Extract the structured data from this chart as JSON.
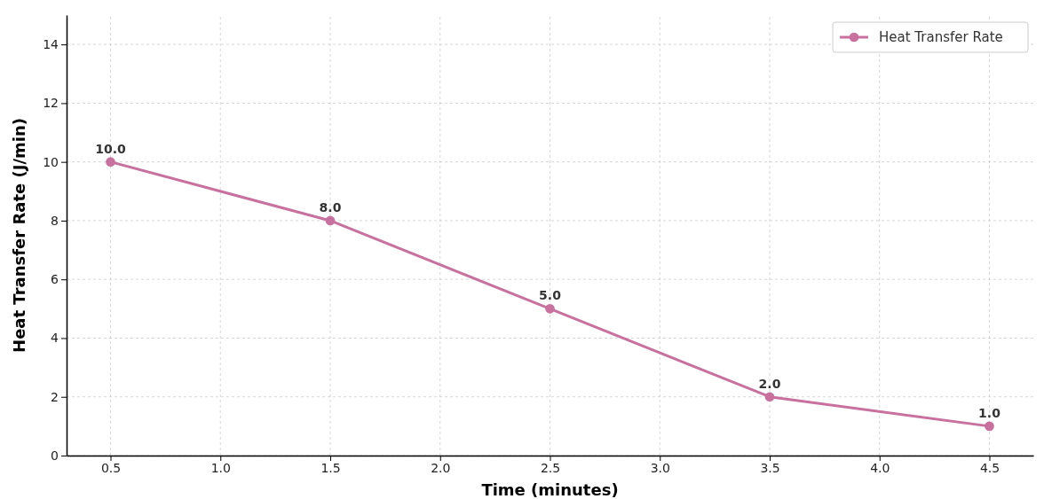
{
  "chart_data": {
    "type": "line",
    "xlabel": "Time (minutes)",
    "ylabel": "Heat Transfer Rate (J/min)",
    "x": [
      0.5,
      1.5,
      2.5,
      3.5,
      4.5
    ],
    "series": [
      {
        "name": "Heat Transfer Rate",
        "color": "#c8719f",
        "values": [
          10,
          8,
          5,
          2,
          1
        ],
        "value_labels": [
          "10.0",
          "8.0",
          "5.0",
          "2.0",
          "1.0"
        ]
      }
    ],
    "xlim": [
      0.3,
      4.7
    ],
    "xticks": [
      {
        "value": 0.5,
        "label": "0.5"
      },
      {
        "value": 1,
        "label": "1.0"
      },
      {
        "value": 1.5,
        "label": "1.5"
      },
      {
        "value": 2,
        "label": "2.0"
      },
      {
        "value": 2.5,
        "label": "2.5"
      },
      {
        "value": 3,
        "label": "3.0"
      },
      {
        "value": 3.5,
        "label": "3.5"
      },
      {
        "value": 4,
        "label": "4.0"
      },
      {
        "value": 4.5,
        "label": "4.5"
      }
    ],
    "ylim": [
      0,
      15
    ],
    "yticks": [
      0,
      2,
      4,
      6,
      8,
      10,
      12,
      14
    ],
    "grid": true,
    "legend": "top right",
    "marker": "circle",
    "line_style": "solid"
  }
}
